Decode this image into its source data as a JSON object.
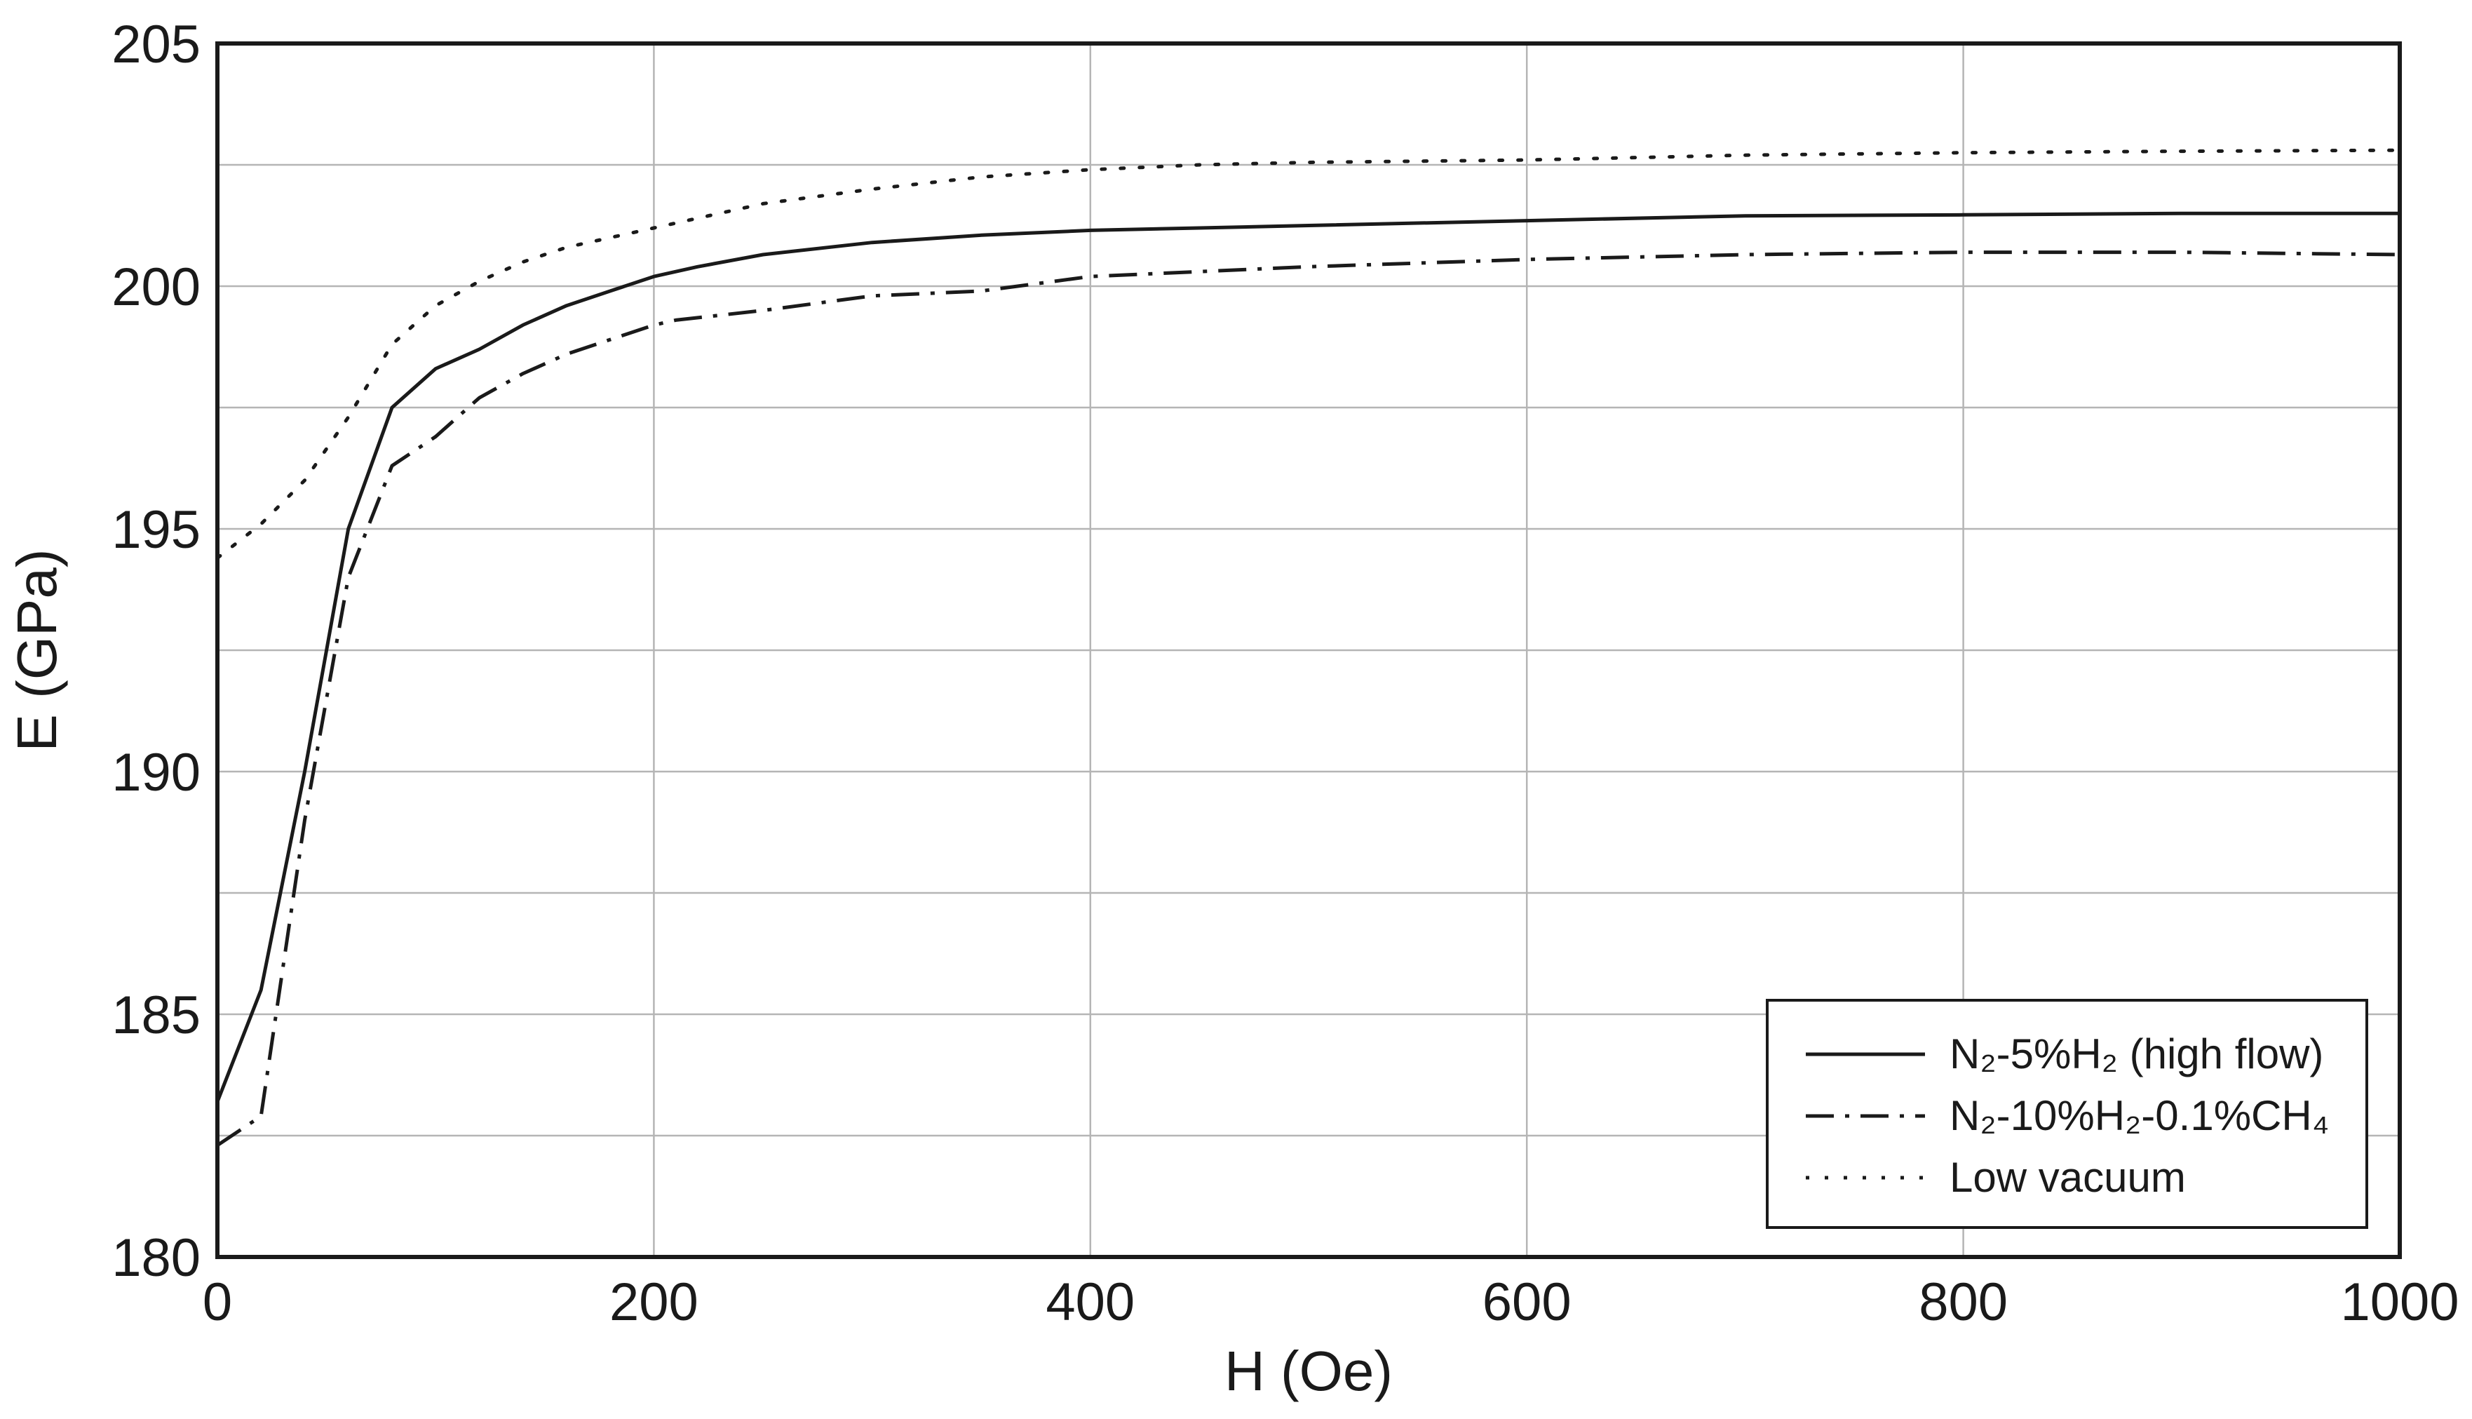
{
  "chart_data": {
    "type": "line",
    "title": "",
    "xlabel": "H (Oe)",
    "ylabel": "E (GPa)",
    "xlim": [
      0,
      1000
    ],
    "ylim": [
      180,
      205
    ],
    "x_ticks": [
      0,
      200,
      400,
      600,
      800,
      1000
    ],
    "y_ticks": [
      180,
      185,
      190,
      195,
      200,
      205
    ],
    "x_grid": [
      0,
      200,
      400,
      600,
      800,
      1000
    ],
    "y_grid": [
      180,
      182.5,
      185,
      187.5,
      190,
      192.5,
      195,
      197.5,
      200,
      202.5,
      205
    ],
    "grid": true,
    "legend_position": "bottom-right",
    "series": [
      {
        "name": "N₂-5%H₂ (high flow)",
        "line_style": "solid",
        "color": "#1a1a1a",
        "x": [
          0,
          20,
          40,
          60,
          80,
          100,
          120,
          140,
          160,
          180,
          200,
          220,
          250,
          300,
          350,
          400,
          450,
          500,
          600,
          700,
          800,
          900,
          1000
        ],
        "y": [
          183.2,
          185.5,
          190.0,
          195.0,
          197.5,
          198.3,
          198.7,
          199.2,
          199.6,
          199.9,
          200.2,
          200.4,
          200.65,
          200.9,
          201.05,
          201.15,
          201.2,
          201.25,
          201.35,
          201.45,
          201.47,
          201.5,
          201.5
        ]
      },
      {
        "name": "N₂-10%H₂-0.1%CH₄",
        "line_style": "dashdot",
        "color": "#1a1a1a",
        "x": [
          0,
          20,
          40,
          60,
          80,
          100,
          120,
          140,
          160,
          180,
          200,
          210,
          250,
          300,
          350,
          400,
          450,
          500,
          600,
          700,
          800,
          900,
          1000
        ],
        "y": [
          182.3,
          182.9,
          189.0,
          194.0,
          196.3,
          196.9,
          197.7,
          198.2,
          198.6,
          198.9,
          199.2,
          199.3,
          199.5,
          199.8,
          199.9,
          200.2,
          200.3,
          200.4,
          200.55,
          200.65,
          200.7,
          200.7,
          200.65
        ]
      },
      {
        "name": "Low vacuum",
        "line_style": "dotted",
        "color": "#1a1a1a",
        "x": [
          0,
          20,
          40,
          60,
          80,
          100,
          120,
          140,
          160,
          180,
          200,
          250,
          300,
          350,
          400,
          450,
          500,
          600,
          700,
          800,
          900,
          1000
        ],
        "y": [
          194.4,
          195.1,
          196.0,
          197.3,
          198.8,
          199.6,
          200.1,
          200.5,
          200.8,
          201.0,
          201.2,
          201.7,
          202.0,
          202.25,
          202.4,
          202.5,
          202.55,
          202.6,
          202.7,
          202.75,
          202.78,
          202.8
        ]
      }
    ]
  }
}
